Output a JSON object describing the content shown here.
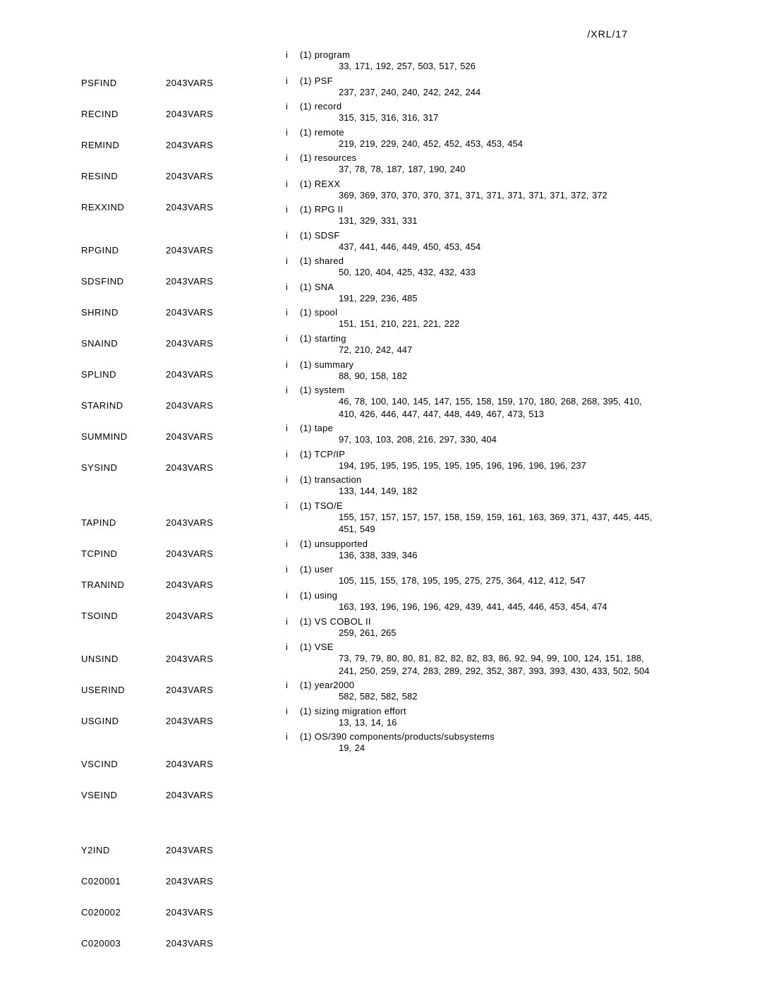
{
  "header": "/XRL/17",
  "document_code": "2043VARS",
  "left_entries": [
    {
      "name": "PSFIND",
      "gap_before": 40
    },
    {
      "name": "RECIND",
      "gap_before": 29
    },
    {
      "name": "REMIND",
      "gap_before": 29
    },
    {
      "name": "RESIND",
      "gap_before": 29
    },
    {
      "name": "REXXIND",
      "gap_before": 29
    },
    {
      "name": "RPGIND",
      "gap_before": 46
    },
    {
      "name": "SDSFIND",
      "gap_before": 29
    },
    {
      "name": "SHRIND",
      "gap_before": 29
    },
    {
      "name": "SNAIND",
      "gap_before": 29
    },
    {
      "name": "SPLIND",
      "gap_before": 29
    },
    {
      "name": "STARIND",
      "gap_before": 29
    },
    {
      "name": "SUMMIND",
      "gap_before": 29
    },
    {
      "name": "SYSIND",
      "gap_before": 29
    },
    {
      "name": "TAPIND",
      "gap_before": 63
    },
    {
      "name": "TCPIND",
      "gap_before": 29
    },
    {
      "name": "TRANIND",
      "gap_before": 29
    },
    {
      "name": "TSOIND",
      "gap_before": 29
    },
    {
      "name": "UNSIND",
      "gap_before": 46
    },
    {
      "name": "USERIND",
      "gap_before": 29
    },
    {
      "name": "USGIND",
      "gap_before": 29
    },
    {
      "name": "VSCIND",
      "gap_before": 46
    },
    {
      "name": "VSEIND",
      "gap_before": 29
    },
    {
      "name": "Y2IND",
      "gap_before": 63
    },
    {
      "name": "C020001",
      "gap_before": 29
    },
    {
      "name": "C020002",
      "gap_before": 29
    },
    {
      "name": "C020003",
      "gap_before": 29
    }
  ],
  "right_entries": [
    {
      "title": "(1)  program",
      "pages": "33, 171, 192, 257, 503, 517, 526"
    },
    {
      "title": "(1)  PSF",
      "pages": "237, 237, 240, 240, 242, 242, 244"
    },
    {
      "title": "(1)  record",
      "pages": "315, 315, 316, 316, 317"
    },
    {
      "title": "(1)  remote",
      "pages": "219, 219, 229, 240, 452, 452, 453, 453, 454"
    },
    {
      "title": "(1)  resources",
      "pages": "37, 78, 78, 187, 187, 190, 240"
    },
    {
      "title": "(1)  REXX",
      "pages": "369, 369, 370, 370, 370, 371, 371, 371, 371, 371, 371, 372, 372"
    },
    {
      "title": "(1)  RPG II",
      "pages": "131, 329, 331, 331"
    },
    {
      "title": "(1)  SDSF",
      "pages": "437, 441, 446, 449, 450, 453, 454"
    },
    {
      "title": "(1)  shared",
      "pages": "50, 120, 404, 425, 432, 432, 433"
    },
    {
      "title": "(1)  SNA",
      "pages": "191, 229, 236, 485"
    },
    {
      "title": "(1)  spool",
      "pages": "151, 151, 210, 221, 221, 222"
    },
    {
      "title": "(1)  starting",
      "pages": "72, 210, 242, 447"
    },
    {
      "title": "(1)  summary",
      "pages": "88, 90, 158, 182"
    },
    {
      "title": "(1)  system",
      "pages": "46, 78, 100, 140, 145, 147, 155, 158, 159, 170, 180, 268, 268, 395, 410, 410, 426, 446, 447, 447, 448, 449, 467, 473, 513"
    },
    {
      "title": "(1)  tape",
      "pages": "97, 103, 103, 208, 216, 297, 330, 404"
    },
    {
      "title": "(1)  TCP/IP",
      "pages": "194, 195, 195, 195, 195, 195, 195, 196, 196, 196, 196, 237"
    },
    {
      "title": "(1)  transaction",
      "pages": "133, 144, 149, 182"
    },
    {
      "title": "(1)  TSO/E",
      "pages": "155, 157, 157, 157, 157, 158, 159, 159, 161, 163, 369, 371, 437, 445, 445, 451, 549"
    },
    {
      "title": "(1)  unsupported",
      "pages": "136, 338, 339, 346"
    },
    {
      "title": "(1)  user",
      "pages": "105, 115, 155, 178, 195, 195, 275, 275, 364, 412, 412, 547"
    },
    {
      "title": "(1)  using",
      "pages": "163, 193, 196, 196, 196, 429, 439, 441, 445, 446, 453, 454, 474"
    },
    {
      "title": "(1)  VS COBOL II",
      "pages": "259, 261, 265"
    },
    {
      "title": "(1)  VSE",
      "pages": "73, 79, 79, 80, 80, 81, 82, 82, 82, 83, 86, 92, 94, 99, 100, 124, 151, 188, 241, 250, 259, 274, 283, 289, 292, 352, 387, 393, 393, 430, 433, 502, 504"
    },
    {
      "title": "(1)  year2000",
      "pages": "582, 582, 582, 582"
    },
    {
      "title": "(1)  sizing migration effort",
      "pages": "13, 13, 14, 16"
    },
    {
      "title": "(1)  OS/390 components/products/subsystems",
      "pages": "19, 24"
    }
  ]
}
